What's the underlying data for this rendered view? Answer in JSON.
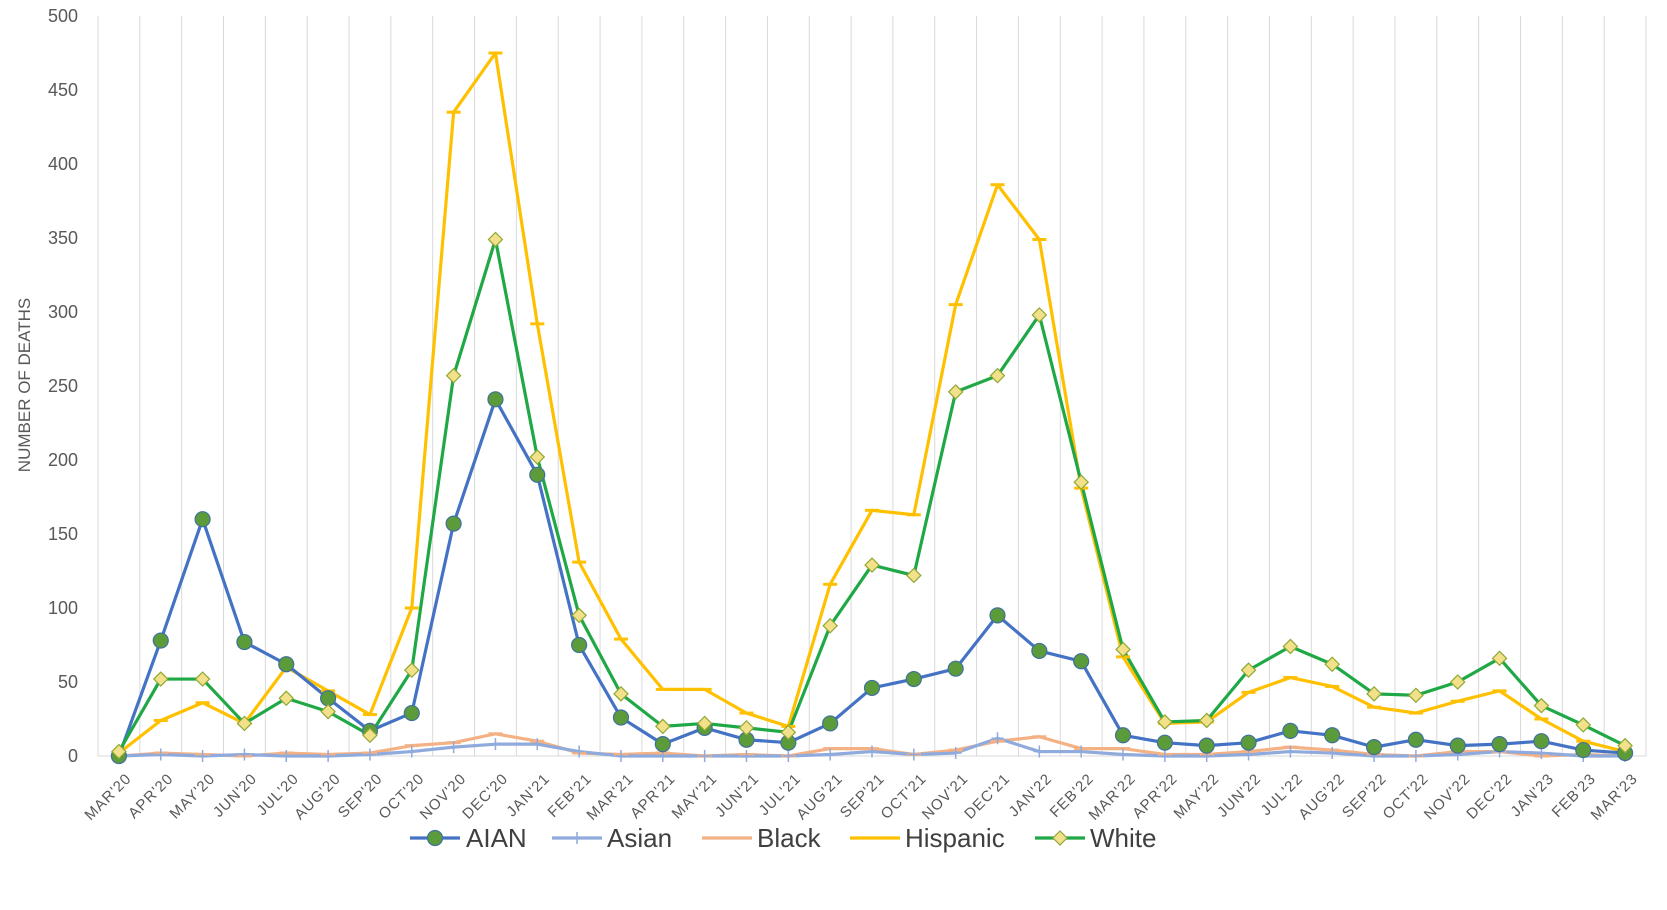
{
  "chart_data": {
    "type": "line",
    "ylabel": "NUMBER OF DEATHS",
    "xlabel": "",
    "ylim": [
      0,
      500
    ],
    "yticks": [
      0,
      50,
      100,
      150,
      200,
      250,
      300,
      350,
      400,
      450,
      500
    ],
    "grid": "vertical",
    "legend_position": "bottom",
    "categories": [
      "MAR'20",
      "APR'20",
      "MAY'20",
      "JUN'20",
      "JUL'20",
      "AUG'20",
      "SEP'20",
      "OCT'20",
      "NOV'20",
      "DEC'20",
      "JAN'21",
      "FEB'21",
      "MAR'21",
      "APR'21",
      "MAY'21",
      "JUN'21",
      "JUL'21",
      "AUG'21",
      "SEP'21",
      "OCT'21",
      "NOV'21",
      "DEC'21",
      "JAN'22",
      "FEB'22",
      "MAR'22",
      "APR'22",
      "MAY'22",
      "JUN'22",
      "JUL'22",
      "AUG'22",
      "SEP'22",
      "OCT'22",
      "NOV'22",
      "DEC'22",
      "JAN'23",
      "FEB'23",
      "MAR'23"
    ],
    "series": [
      {
        "name": "AIAN",
        "color": "#4472C4",
        "marker": "circle",
        "marker_fill": "#5B9B3A",
        "values": [
          0,
          78,
          160,
          77,
          62,
          39,
          17,
          29,
          157,
          241,
          190,
          75,
          26,
          8,
          19,
          11,
          9,
          22,
          46,
          52,
          59,
          95,
          71,
          64,
          14,
          9,
          7,
          9,
          17,
          14,
          6,
          11,
          7,
          8,
          10,
          4,
          2
        ]
      },
      {
        "name": "Asian",
        "color": "#8FAADC",
        "marker": "plus",
        "values": [
          0,
          1,
          0,
          1,
          0,
          0,
          1,
          3,
          6,
          8,
          8,
          3,
          0,
          0,
          0,
          0,
          0,
          1,
          3,
          1,
          2,
          12,
          3,
          3,
          1,
          0,
          0,
          1,
          3,
          2,
          0,
          0,
          1,
          3,
          2,
          0,
          0
        ]
      },
      {
        "name": "Black",
        "color": "#F4B183",
        "marker": "dash",
        "values": [
          0,
          2,
          1,
          0,
          2,
          1,
          2,
          7,
          9,
          15,
          10,
          2,
          1,
          2,
          0,
          1,
          0,
          5,
          5,
          1,
          4,
          10,
          13,
          5,
          5,
          1,
          1,
          3,
          6,
          4,
          1,
          0,
          3,
          3,
          0,
          1,
          0
        ]
      },
      {
        "name": "Hispanic",
        "color": "#FFC000",
        "marker": "dash",
        "values": [
          2,
          24,
          36,
          22,
          60,
          44,
          28,
          100,
          435,
          475,
          292,
          131,
          79,
          45,
          45,
          29,
          20,
          116,
          166,
          163,
          305,
          386,
          349,
          181,
          67,
          22,
          23,
          43,
          53,
          47,
          33,
          29,
          37,
          44,
          25,
          10,
          3
        ]
      },
      {
        "name": "White",
        "color": "#1FA845",
        "marker": "diamond",
        "marker_fill": "#F2E08A",
        "values": [
          3,
          52,
          52,
          22,
          39,
          30,
          14,
          58,
          257,
          349,
          202,
          95,
          42,
          20,
          22,
          19,
          16,
          88,
          129,
          122,
          246,
          257,
          298,
          185,
          72,
          23,
          24,
          58,
          74,
          62,
          42,
          41,
          50,
          66,
          34,
          21,
          7
        ]
      }
    ]
  }
}
